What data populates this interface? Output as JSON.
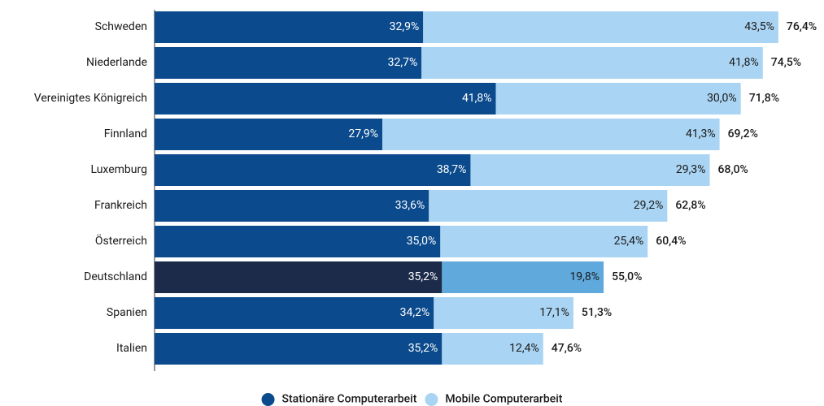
{
  "chart_data": {
    "type": "stacked-barh",
    "categories": [
      "Schweden",
      "Niederlande",
      "Vereinigtes Königreich",
      "Finnland",
      "Luxemburg",
      "Frankreich",
      "Österreich",
      "Deutschland",
      "Spanien",
      "Italien"
    ],
    "series": [
      {
        "name": "Stationäre Computerarbeit",
        "color": "#0b4a8c",
        "highlight_color": "#1c2b4a",
        "values": [
          32.9,
          32.7,
          41.8,
          27.9,
          38.7,
          33.6,
          35.0,
          35.2,
          34.2,
          35.2
        ],
        "value_labels": [
          "32,9%",
          "32,7%",
          "41,8%",
          "27,9%",
          "38,7%",
          "33,6%",
          "35,0%",
          "35,2%",
          "34,2%",
          "35,2%"
        ]
      },
      {
        "name": "Mobile Computerarbeit",
        "color": "#aad4f3",
        "highlight_color": "#5fa9dd",
        "values": [
          43.5,
          41.8,
          30.0,
          41.3,
          29.3,
          29.2,
          25.4,
          19.8,
          17.1,
          12.4
        ],
        "value_labels": [
          "43,5%",
          "41,8%",
          "30,0%",
          "41,3%",
          "29,3%",
          "29,2%",
          "25,4%",
          "19,8%",
          "17,1%",
          "12,4%"
        ]
      }
    ],
    "totals": [
      76.4,
      74.5,
      71.8,
      69.2,
      68.0,
      62.8,
      60.4,
      55.0,
      51.3,
      47.6
    ],
    "total_labels": [
      "76,4%",
      "74,5%",
      "71,8%",
      "69,2%",
      "68,0%",
      "62,8%",
      "60,4%",
      "55,0%",
      "51,3%",
      "47,6%"
    ],
    "highlight": "Deutschland",
    "xlim": [
      0,
      80
    ]
  }
}
